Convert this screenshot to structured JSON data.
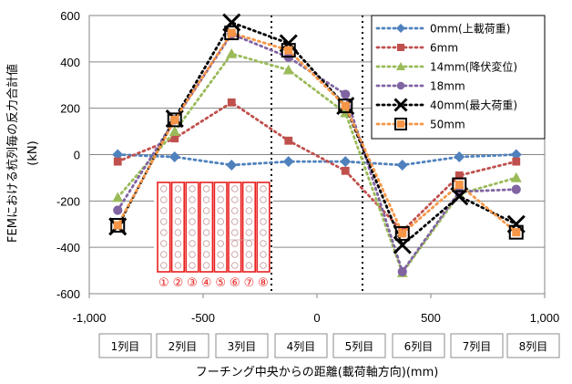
{
  "chart_data": {
    "type": "line",
    "xlabel": "フーチング中央からの距離(載荷軸方向)(mm)",
    "ylabel": "FEMにおける杭列毎の反力合計値",
    "yunit": "(kN)",
    "xlim": [
      -1000,
      1000
    ],
    "ylim": [
      -600,
      600
    ],
    "xticks": [
      -1000,
      -500,
      0,
      500,
      1000
    ],
    "xtick_labels": [
      "-1,000",
      "-500",
      "0",
      "500",
      "1,000"
    ],
    "yticks": [
      -600,
      -400,
      -200,
      0,
      200,
      400,
      600
    ],
    "ytick_labels": [
      "-600",
      "-400",
      "-200",
      "0",
      "200",
      "400",
      "600"
    ],
    "grid": "horizontal",
    "legend_position": "top-right",
    "x": [
      -875,
      -625,
      -375,
      -125,
      125,
      375,
      625,
      875
    ],
    "pile_row_labels": [
      "1列目",
      "2列目",
      "3列目",
      "4列目",
      "5列目",
      "6列目",
      "7列目",
      "8列目"
    ],
    "vertical_dotted_lines_x": [
      -200,
      200
    ],
    "inset_numbers": [
      "①",
      "②",
      "③",
      "④",
      "⑤",
      "⑥",
      "⑦",
      "⑧"
    ],
    "series": [
      {
        "name": "0mm(上載荷重)",
        "marker": "diamond",
        "color": "#4f81bd",
        "values": [
          0,
          -10,
          -45,
          -30,
          -30,
          -45,
          -10,
          0
        ]
      },
      {
        "name": "6mm",
        "marker": "square",
        "color": "#c0504d",
        "values": [
          -30,
          70,
          225,
          60,
          -70,
          -330,
          -90,
          -30
        ]
      },
      {
        "name": "14mm(降伏変位)",
        "marker": "triangle",
        "color": "#9bbb59",
        "values": [
          -185,
          100,
          435,
          365,
          180,
          -510,
          -170,
          -100
        ]
      },
      {
        "name": "18mm",
        "marker": "circle",
        "color": "#8064a2",
        "values": [
          -240,
          150,
          520,
          420,
          260,
          -505,
          -160,
          -150
        ]
      },
      {
        "name": "40mm(最大荷重)",
        "marker": "x",
        "color": "#000000",
        "values": [
          -310,
          155,
          570,
          480,
          210,
          -390,
          -180,
          -300
        ]
      },
      {
        "name": "50mm",
        "marker": "open-square",
        "color": "#f79646",
        "values": [
          -305,
          150,
          525,
          450,
          210,
          -340,
          -130,
          -335
        ]
      }
    ]
  }
}
